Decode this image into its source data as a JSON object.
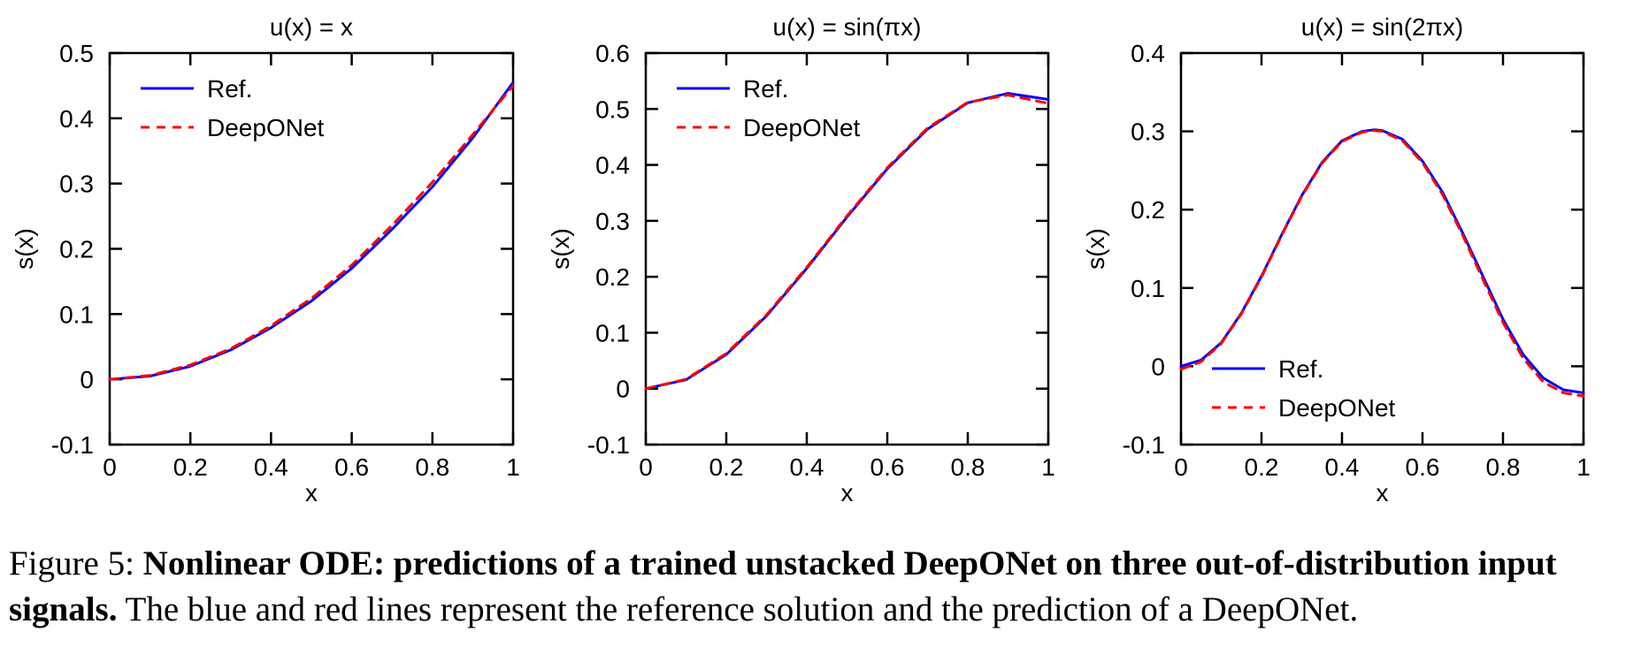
{
  "chart_data": [
    {
      "type": "line",
      "title": "u(x) = x",
      "xlabel": "x",
      "ylabel": "s(x)",
      "xlim": [
        0,
        1
      ],
      "ylim": [
        -0.1,
        0.5
      ],
      "xticks": [
        0,
        0.2,
        0.4,
        0.6,
        0.8,
        1
      ],
      "xtick_labels": [
        "0",
        "0.2",
        "0.4",
        "0.6",
        "0.8",
        "1"
      ],
      "yticks": [
        -0.1,
        0,
        0.1,
        0.2,
        0.3,
        0.4,
        0.5
      ],
      "ytick_labels": [
        "-0.1",
        "0",
        "0.1",
        "0.2",
        "0.3",
        "0.4",
        "0.5"
      ],
      "legend_position": "top-left",
      "x": [
        0,
        0.1,
        0.2,
        0.3,
        0.4,
        0.5,
        0.6,
        0.7,
        0.8,
        0.9,
        1.0
      ],
      "series": [
        {
          "name": "Ref.",
          "color": "#0000ff",
          "style": "solid",
          "values": [
            0,
            0.005,
            0.02,
            0.045,
            0.079,
            0.12,
            0.17,
            0.23,
            0.295,
            0.37,
            0.455
          ]
        },
        {
          "name": "DeepONet",
          "color": "#ff0000",
          "style": "dashed",
          "values": [
            0,
            0.006,
            0.022,
            0.047,
            0.082,
            0.124,
            0.175,
            0.236,
            0.302,
            0.375,
            0.45
          ]
        }
      ]
    },
    {
      "type": "line",
      "title": "u(x) = sin(πx)",
      "xlabel": "x",
      "ylabel": "s(x)",
      "xlim": [
        0,
        1
      ],
      "ylim": [
        -0.1,
        0.6
      ],
      "xticks": [
        0,
        0.2,
        0.4,
        0.6,
        0.8,
        1
      ],
      "xtick_labels": [
        "0",
        "0.2",
        "0.4",
        "0.6",
        "0.8",
        "1"
      ],
      "yticks": [
        -0.1,
        0,
        0.1,
        0.2,
        0.3,
        0.4,
        0.5,
        0.6
      ],
      "ytick_labels": [
        "-0.1",
        "0",
        "0.1",
        "0.2",
        "0.3",
        "0.4",
        "0.5",
        "0.6"
      ],
      "legend_position": "top-left",
      "x": [
        0,
        0.1,
        0.2,
        0.3,
        0.4,
        0.5,
        0.6,
        0.7,
        0.8,
        0.9,
        1.0
      ],
      "series": [
        {
          "name": "Ref.",
          "color": "#0000ff",
          "style": "solid",
          "values": [
            0,
            0.016,
            0.061,
            0.13,
            0.215,
            0.307,
            0.393,
            0.464,
            0.511,
            0.528,
            0.517
          ]
        },
        {
          "name": "DeepONet",
          "color": "#ff0000",
          "style": "dashed",
          "values": [
            0,
            0.017,
            0.063,
            0.132,
            0.217,
            0.309,
            0.395,
            0.466,
            0.512,
            0.525,
            0.51
          ]
        }
      ]
    },
    {
      "type": "line",
      "title": "u(x) = sin(2πx)",
      "xlabel": "x",
      "ylabel": "s(x)",
      "xlim": [
        0,
        1
      ],
      "ylim": [
        -0.1,
        0.4
      ],
      "xticks": [
        0,
        0.2,
        0.4,
        0.6,
        0.8,
        1
      ],
      "xtick_labels": [
        "0",
        "0.2",
        "0.4",
        "0.6",
        "0.8",
        "1"
      ],
      "yticks": [
        -0.1,
        0,
        0.1,
        0.2,
        0.3,
        0.4
      ],
      "ytick_labels": [
        "-0.1",
        "0",
        "0.1",
        "0.2",
        "0.3",
        "0.4"
      ],
      "legend_position": "bottom-left",
      "x": [
        0,
        0.05,
        0.1,
        0.15,
        0.2,
        0.25,
        0.3,
        0.35,
        0.4,
        0.45,
        0.48,
        0.5,
        0.55,
        0.6,
        0.65,
        0.7,
        0.75,
        0.8,
        0.85,
        0.9,
        0.95,
        1.0
      ],
      "series": [
        {
          "name": "Ref.",
          "color": "#0000ff",
          "style": "solid",
          "values": [
            0,
            0.008,
            0.03,
            0.068,
            0.115,
            0.168,
            0.218,
            0.26,
            0.288,
            0.3,
            0.302,
            0.301,
            0.29,
            0.262,
            0.222,
            0.17,
            0.115,
            0.06,
            0.015,
            -0.015,
            -0.03,
            -0.034
          ]
        },
        {
          "name": "DeepONet",
          "color": "#ff0000",
          "style": "dashed",
          "values": [
            -0.004,
            0.006,
            0.029,
            0.067,
            0.114,
            0.167,
            0.217,
            0.259,
            0.287,
            0.299,
            0.301,
            0.3,
            0.288,
            0.26,
            0.219,
            0.167,
            0.111,
            0.056,
            0.01,
            -0.02,
            -0.034,
            -0.038
          ]
        }
      ]
    }
  ],
  "caption": {
    "label": "Figure 5:",
    "bold": "Nonlinear ODE: predictions of a trained unstacked DeepONet on three out-of-distribution input signals.",
    "text": "The blue and red lines represent the reference solution and the prediction of a DeepONet."
  }
}
